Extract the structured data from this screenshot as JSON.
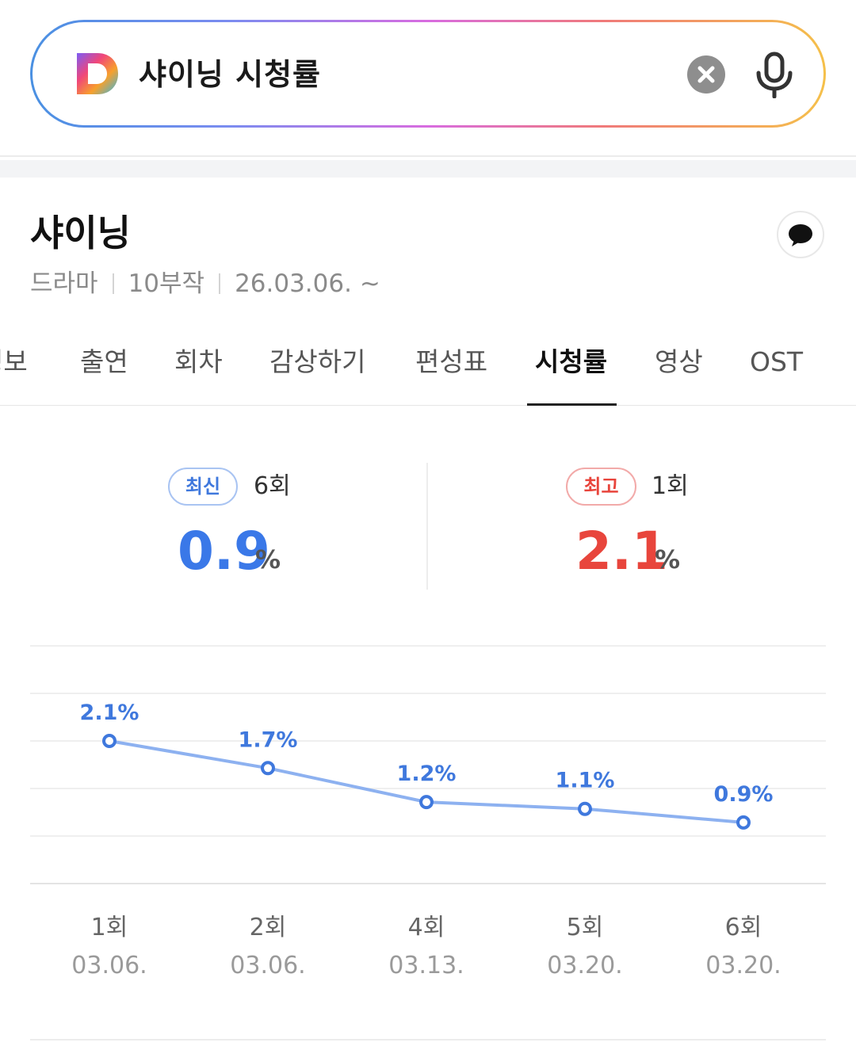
{
  "search": {
    "query": "샤이닝 시청률"
  },
  "program": {
    "title": "샤이닝",
    "genre": "드라마",
    "episodes": "10부작",
    "start_date": "26.03.06. ~"
  },
  "tabs": [
    {
      "label": "정보"
    },
    {
      "label": "출연"
    },
    {
      "label": "회차"
    },
    {
      "label": "감상하기"
    },
    {
      "label": "편성표"
    },
    {
      "label": "시청률",
      "active": true
    },
    {
      "label": "영상"
    },
    {
      "label": "OST"
    }
  ],
  "stats": {
    "latest": {
      "badge": "최신",
      "episode": "6회",
      "value": "0.9",
      "unit": "%",
      "color": "#3a78e8"
    },
    "highest": {
      "badge": "최고",
      "episode": "1회",
      "value": "2.1",
      "unit": "%",
      "color": "#e8453c"
    }
  },
  "colors": {
    "line": "#8db1f0",
    "point_label": "#3f78dd",
    "accent_blue": "#3a78e8",
    "accent_red": "#e8453c"
  },
  "chart_data": {
    "type": "line",
    "categories": [
      "1회",
      "2회",
      "4회",
      "5회",
      "6회"
    ],
    "dates": [
      "03.06.",
      "03.06.",
      "03.13.",
      "03.20.",
      "03.20."
    ],
    "values": [
      2.1,
      1.7,
      1.2,
      1.1,
      0.9
    ],
    "data_labels": [
      "2.1%",
      "1.7%",
      "1.2%",
      "1.1%",
      "0.9%"
    ],
    "ylim": [
      0,
      3.5
    ],
    "grid": true
  }
}
